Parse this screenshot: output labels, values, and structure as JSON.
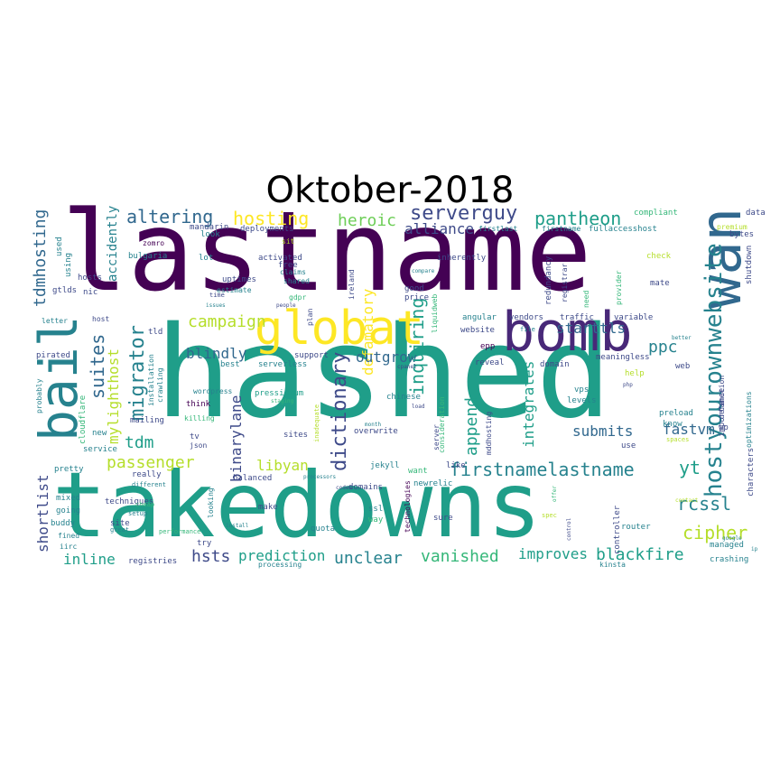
{
  "title": "Oktober-2018",
  "colors": {
    "dark_purple": "#440154",
    "purple": "#482878",
    "indigo": "#3e4a89",
    "blue": "#31688e",
    "teal": "#26828e",
    "teal_green": "#1f9e89",
    "green": "#35b779",
    "light_green": "#6ece58",
    "lime": "#b5de2b",
    "yellow": "#fde725"
  },
  "words": [
    "lastname",
    "hashed",
    "takedowns",
    "bomb",
    "bail",
    "wan",
    "globat",
    "hostyourownwebsite",
    "dictionary",
    "serverguy",
    "pantheon",
    "altering",
    "hosting",
    "heroic",
    "alliance",
    "campaign",
    "migrator",
    "mylighthost",
    "suites",
    "tdmhosting",
    "shortlist",
    "passenger",
    "tdm",
    "blindly",
    "defamatory",
    "outgrow",
    "inquiring",
    "append",
    "integrates",
    "submits",
    "firstnamelastname",
    "yt",
    "ppc",
    "starttls",
    "fastvm",
    "rcssl",
    "cipher",
    "libyan",
    "binarylane",
    "unclear",
    "vanished",
    "improves",
    "blackfire",
    "prediction",
    "hsts",
    "inline",
    "accidently",
    "nic",
    "hosts",
    "gtlds",
    "used",
    "using",
    "zomro",
    "bulgaria",
    "mandarin",
    "deployments",
    "activated",
    "free",
    "claims",
    "shared",
    "uptimes",
    "estimate",
    "lot",
    "look",
    "sit",
    "gdpr",
    "people",
    "ireland",
    "inherently",
    "good",
    "price",
    "redundancy",
    "registrar",
    "need",
    "provider",
    "check",
    "mate",
    "compliant",
    "premium",
    "data",
    "bytes",
    "shutdown",
    "firstlast",
    "firstname",
    "fullaccesshost",
    "installation",
    "letter",
    "host",
    "tld",
    "pirated",
    "support",
    "plan",
    "serverless",
    "best",
    "wordpress",
    "crawling",
    "think",
    "killing",
    "mailing",
    "cloudflare",
    "tv",
    "json",
    "pressidium",
    "probably",
    "service",
    "new",
    "sites",
    "overwrite",
    "jekyll",
    "want",
    "newrelic",
    "domains",
    "ssl",
    "way",
    "sure",
    "quota",
    "make",
    "balanced",
    "really",
    "pretty",
    "mixed",
    "going",
    "buddy",
    "fined",
    "iirc",
    "techniques",
    "site",
    "try",
    "registries",
    "technologies",
    "processing",
    "angular",
    "vendors",
    "traffic",
    "variable",
    "website",
    "epp",
    "reveal",
    "domain",
    "meaningless",
    "web",
    "chinese",
    "vps",
    "levels",
    "preload",
    "know",
    "use",
    "mddhosting",
    "consideration",
    "server",
    "like",
    "controller",
    "router",
    "managed",
    "crashing",
    "kinsta",
    "importance",
    "wp",
    "defamation",
    "characters",
    "optimizations",
    "help",
    "better",
    "php",
    "liquidweb",
    "looking",
    "different",
    "cheap",
    "great",
    "setup",
    "install",
    "performance",
    "codes",
    "processors",
    "load",
    "month",
    "staging",
    "cpanel",
    "inadequate",
    "spec",
    "offer",
    "control",
    "ip",
    "google",
    "spaces",
    "contact",
    "compare",
    "time",
    "issues",
    "file"
  ]
}
